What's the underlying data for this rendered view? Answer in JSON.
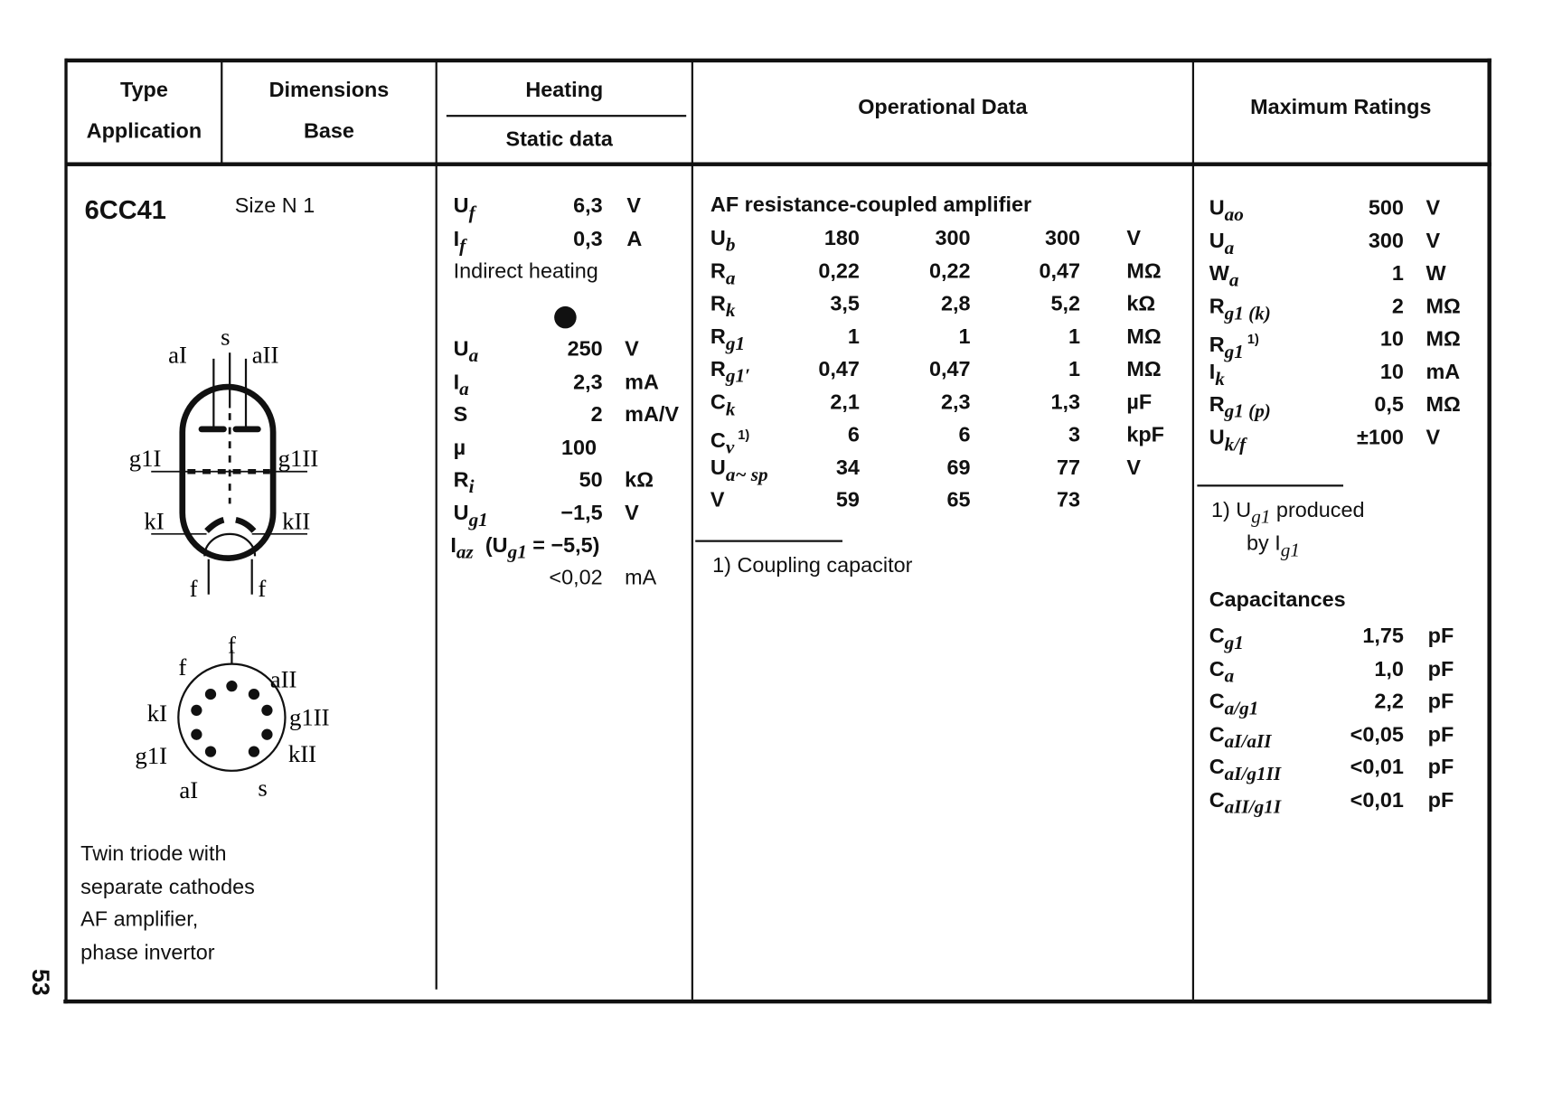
{
  "header": {
    "type": "Type",
    "application": "Application",
    "dimensions": "Dimensions",
    "base": "Base",
    "heating": "Heating",
    "static_data": "Static data",
    "operational_data": "Operational Data",
    "maximum_ratings": "Maximum Ratings"
  },
  "type_col": {
    "tube_type": "6CC41",
    "size": "Size N 1",
    "description": [
      "Twin triode with",
      "separate cathodes",
      "AF amplifier,",
      "phase invertor"
    ],
    "tube_diagram_labels": {
      "a1": "aI",
      "s": "s",
      "a2": "aII",
      "g1a": "g1I",
      "g1b": "g1II",
      "k1": "kI",
      "k2": "kII",
      "f1": "f",
      "f2": "f"
    },
    "base_diagram_labels": {
      "f1": "f",
      "f2": "f",
      "a2": "aII",
      "g1b": "g1II",
      "k2": "kII",
      "s": "s",
      "a1": "aI",
      "g1a": "g1I",
      "k1": "kI"
    }
  },
  "heating": {
    "rows": [
      {
        "sym": "U",
        "sub": "f",
        "val": "6,3",
        "unit": "V"
      },
      {
        "sym": "I",
        "sub": "f",
        "val": "0,3",
        "unit": "A"
      }
    ],
    "note": "Indirect heating",
    "static_rows": [
      {
        "sym": "U",
        "sub": "a",
        "val": "250",
        "unit": "V"
      },
      {
        "sym": "I",
        "sub": "a",
        "val": "2,3",
        "unit": "mA"
      },
      {
        "sym": "S",
        "sub": "",
        "val": "2",
        "unit": "mA/V"
      },
      {
        "sym": "µ",
        "sub": "",
        "val": "100",
        "unit": ""
      },
      {
        "sym": "R",
        "sub": "i",
        "val": "50",
        "unit": "kΩ"
      },
      {
        "sym": "U",
        "sub": "g1",
        "val": "−1,5",
        "unit": "V"
      }
    ],
    "iaz_label": "I",
    "iaz_sub": "az",
    "iaz_cond": "(U",
    "iaz_cond_sub": "g1",
    "iaz_cond_end": " = −5,5)",
    "iaz_val": "<0,02",
    "iaz_unit": "mA"
  },
  "operational": {
    "title": "AF resistance-coupled amplifier",
    "rows": [
      {
        "sym": "U",
        "sub": "b",
        "sup": "",
        "vals": [
          "180",
          "300",
          "300"
        ],
        "unit": "V"
      },
      {
        "sym": "R",
        "sub": "a",
        "sup": "",
        "vals": [
          "0,22",
          "0,22",
          "0,47"
        ],
        "unit": "MΩ"
      },
      {
        "sym": "R",
        "sub": "k",
        "sup": "",
        "vals": [
          "3,5",
          "2,8",
          "5,2"
        ],
        "unit": "kΩ"
      },
      {
        "sym": "R",
        "sub": "g1",
        "sup": "",
        "vals": [
          "1",
          "1",
          "1"
        ],
        "unit": "MΩ"
      },
      {
        "sym": "R",
        "sub": "g1′",
        "sup": "",
        "vals": [
          "0,47",
          "0,47",
          "1"
        ],
        "unit": "MΩ"
      },
      {
        "sym": "C",
        "sub": "k",
        "sup": "",
        "vals": [
          "2,1",
          "2,3",
          "1,3"
        ],
        "unit": "µF"
      },
      {
        "sym": "C",
        "sub": "v",
        "sup": "1)",
        "vals": [
          "6",
          "6",
          "3"
        ],
        "unit": "kpF"
      },
      {
        "sym": "U",
        "sub": "a~ sp",
        "sup": "",
        "vals": [
          "34",
          "69",
          "77"
        ],
        "unit": "V"
      },
      {
        "sym": "V",
        "sub": "",
        "sup": "",
        "vals": [
          "59",
          "65",
          "73"
        ],
        "unit": ""
      }
    ],
    "footnote": "1) Coupling capacitor"
  },
  "max_ratings": {
    "rows": [
      {
        "sym": "U",
        "sub": "ao",
        "sup": "",
        "val": "500",
        "unit": "V"
      },
      {
        "sym": "U",
        "sub": "a",
        "sup": "",
        "val": "300",
        "unit": "V"
      },
      {
        "sym": "W",
        "sub": "a",
        "sup": "",
        "val": "1",
        "unit": "W"
      },
      {
        "sym": "R",
        "sub": "g1 (k)",
        "sup": "",
        "val": "2",
        "unit": "MΩ"
      },
      {
        "sym": "R",
        "sub": "g1",
        "sup": "1)",
        "val": "10",
        "unit": "MΩ"
      },
      {
        "sym": "I",
        "sub": "k",
        "sup": "",
        "val": "10",
        "unit": "mA"
      },
      {
        "sym": "R",
        "sub": "g1 (p)",
        "sup": "",
        "val": "0,5",
        "unit": "MΩ"
      },
      {
        "sym": "U",
        "sub": "k/f",
        "sup": "",
        "val": "±100",
        "unit": "V"
      }
    ],
    "footnote_line1": "1) U",
    "footnote_line1_sub": "g1",
    "footnote_line1_end": " produced",
    "footnote_line2": "by I",
    "footnote_line2_sub": "g1",
    "capacitances_title": "Capacitances",
    "capacitances": [
      {
        "sym": "C",
        "sub": "g1",
        "val": "1,75",
        "unit": "pF"
      },
      {
        "sym": "C",
        "sub": "a",
        "val": "1,0",
        "unit": "pF"
      },
      {
        "sym": "C",
        "sub": "a/g1",
        "val": "2,2",
        "unit": "pF"
      },
      {
        "sym": "C",
        "sub": "aI/aII",
        "val": "<0,05",
        "unit": "pF"
      },
      {
        "sym": "C",
        "sub": "aI/g1II",
        "val": "<0,01",
        "unit": "pF"
      },
      {
        "sym": "C",
        "sub": "aII/g1I",
        "val": "<0,01",
        "unit": "pF"
      }
    ]
  },
  "page_number": "53"
}
